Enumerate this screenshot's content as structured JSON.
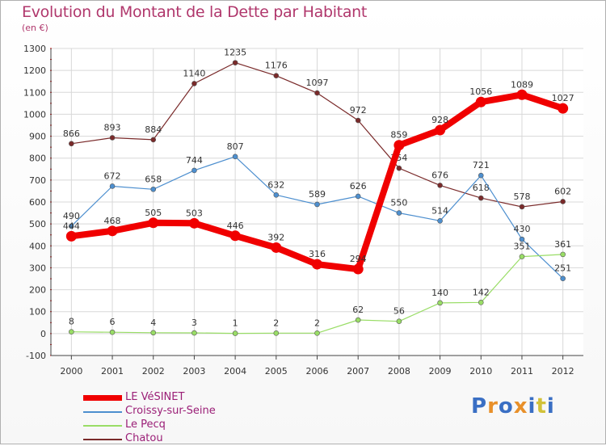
{
  "title": "Evolution du Montant de la Dette par Habitant",
  "subtitle": "(en €)",
  "logo": {
    "text": "Proxiti",
    "colors": [
      "#3a6fc4",
      "#e8902a",
      "#3a6fc4",
      "#e8902a",
      "#3a6fc4",
      "#d2c23a",
      "#3a6fc4"
    ]
  },
  "chart_data": {
    "type": "line",
    "x": [
      "2000",
      "2001",
      "2002",
      "2003",
      "2004",
      "2005",
      "2006",
      "2007",
      "2008",
      "2009",
      "2010",
      "2011",
      "2012"
    ],
    "yticks": [
      -100,
      0,
      100,
      200,
      300,
      400,
      500,
      600,
      700,
      800,
      900,
      1000,
      1100,
      1200,
      1300
    ],
    "ylim": [
      -100,
      1300
    ],
    "grid": true,
    "legend_position": "bottom-left",
    "series": [
      {
        "name": "Chatou",
        "color": "#7a2a2a",
        "values": [
          866,
          893,
          884,
          1140,
          1235,
          1176,
          1097,
          972,
          754,
          676,
          618,
          578,
          602
        ]
      },
      {
        "name": "Croissy-sur-Seine",
        "color": "#4d8fcf",
        "values": [
          490,
          672,
          658,
          744,
          807,
          632,
          589,
          626,
          550,
          514,
          721,
          430,
          251
        ]
      },
      {
        "name": "Le Pecq",
        "color": "#99dd66",
        "values": [
          8,
          6,
          4,
          3,
          1,
          2,
          2,
          62,
          56,
          140,
          142,
          351,
          361
        ]
      },
      {
        "name": "LE VéSINET",
        "color": "#f00000",
        "values": [
          444,
          468,
          505,
          503,
          446,
          392,
          316,
          294,
          859,
          928,
          1056,
          1089,
          1027
        ]
      }
    ],
    "legend": [
      "LE VéSINET",
      "Croissy-sur-Seine",
      "Le Pecq",
      "Chatou"
    ]
  }
}
